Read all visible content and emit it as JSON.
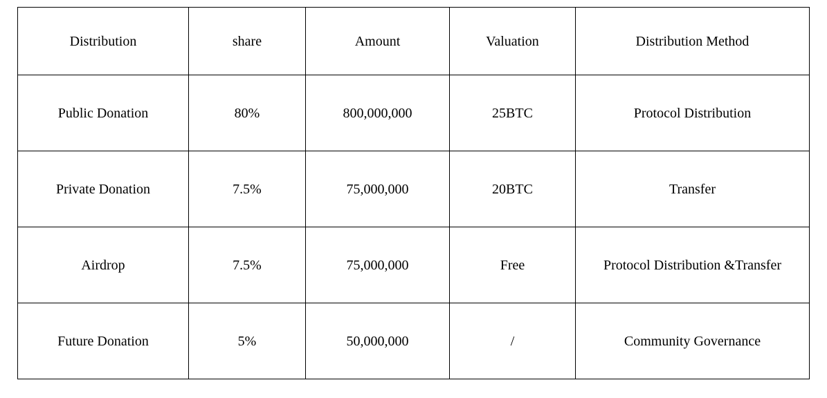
{
  "table": {
    "type": "table",
    "background_color": "#ffffff",
    "border_color": "#000000",
    "text_color": "#000000",
    "font_family": "Times New Roman",
    "font_size": 20,
    "header_row_height": 98,
    "data_row_height": 110,
    "columns": [
      {
        "key": "distribution",
        "label": "Distribution",
        "width_pct": 19,
        "align": "center"
      },
      {
        "key": "share",
        "label": "share",
        "width_pct": 13,
        "align": "center"
      },
      {
        "key": "amount",
        "label": "Amount",
        "width_pct": 16,
        "align": "center"
      },
      {
        "key": "valuation",
        "label": "Valuation",
        "width_pct": 14,
        "align": "center"
      },
      {
        "key": "method",
        "label": "Distribution Method",
        "width_pct": 26,
        "align": "center"
      }
    ],
    "rows": [
      {
        "distribution": "Public Donation",
        "share": "80%",
        "amount": "800,000,000",
        "valuation": "25BTC",
        "method": "Protocol Distribution"
      },
      {
        "distribution": "Private Donation",
        "share": "7.5%",
        "amount": "75,000,000",
        "valuation": "20BTC",
        "method": "Transfer"
      },
      {
        "distribution": "Airdrop",
        "share": "7.5%",
        "amount": "75,000,000",
        "valuation": "Free",
        "method": "Protocol Distribution &Transfer"
      },
      {
        "distribution": "Future Donation",
        "share": "5%",
        "amount": "50,000,000",
        "valuation": "/",
        "method": "Community Governance"
      }
    ]
  }
}
